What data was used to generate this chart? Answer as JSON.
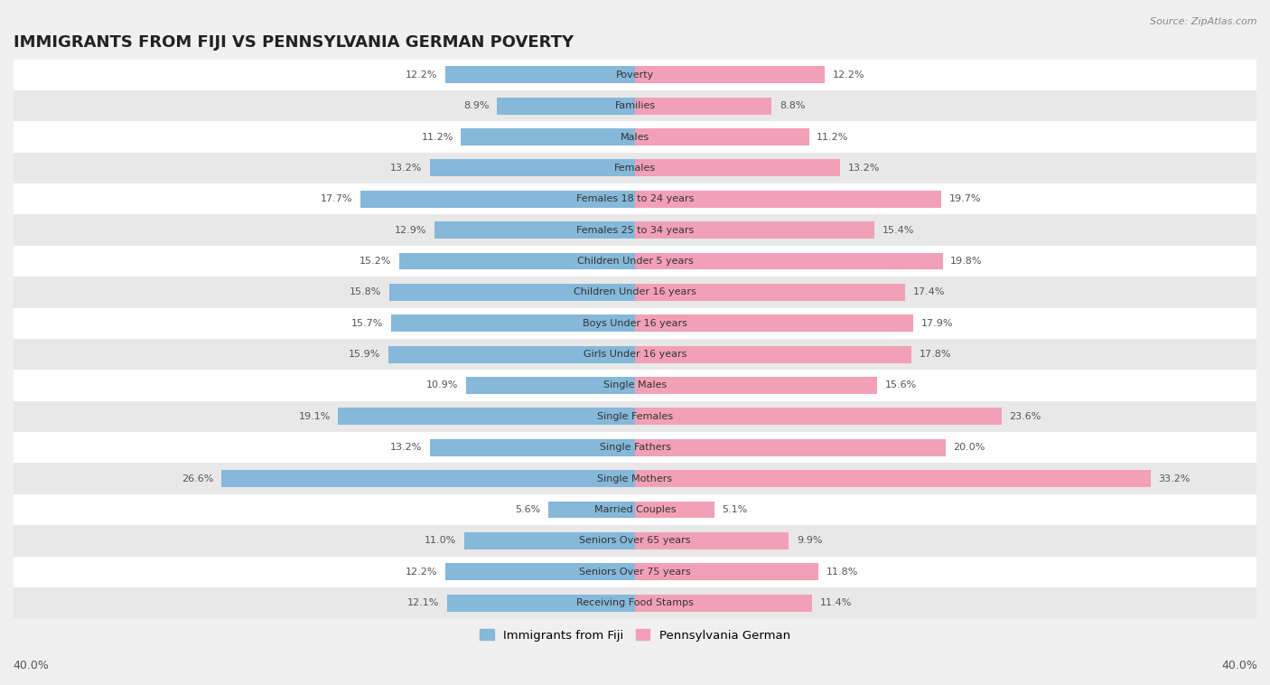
{
  "title": "IMMIGRANTS FROM FIJI VS PENNSYLVANIA GERMAN POVERTY",
  "source": "Source: ZipAtlas.com",
  "categories": [
    "Poverty",
    "Families",
    "Males",
    "Females",
    "Females 18 to 24 years",
    "Females 25 to 34 years",
    "Children Under 5 years",
    "Children Under 16 years",
    "Boys Under 16 years",
    "Girls Under 16 years",
    "Single Males",
    "Single Females",
    "Single Fathers",
    "Single Mothers",
    "Married Couples",
    "Seniors Over 65 years",
    "Seniors Over 75 years",
    "Receiving Food Stamps"
  ],
  "fiji_values": [
    12.2,
    8.9,
    11.2,
    13.2,
    17.7,
    12.9,
    15.2,
    15.8,
    15.7,
    15.9,
    10.9,
    19.1,
    13.2,
    26.6,
    5.6,
    11.0,
    12.2,
    12.1
  ],
  "penn_values": [
    12.2,
    8.8,
    11.2,
    13.2,
    19.7,
    15.4,
    19.8,
    17.4,
    17.9,
    17.8,
    15.6,
    23.6,
    20.0,
    33.2,
    5.1,
    9.9,
    11.8,
    11.4
  ],
  "fiji_color": "#85b8d9",
  "penn_color": "#f2a0b8",
  "fiji_label": "Immigrants from Fiji",
  "penn_label": "Pennsylvania German",
  "x_max": 40.0,
  "background_color": "#f0f0f0",
  "row_color_even": "#ffffff",
  "row_color_odd": "#e8e8e8",
  "title_fontsize": 13,
  "label_fontsize": 8.0,
  "value_fontsize": 8.0,
  "legend_fontsize": 9.5
}
